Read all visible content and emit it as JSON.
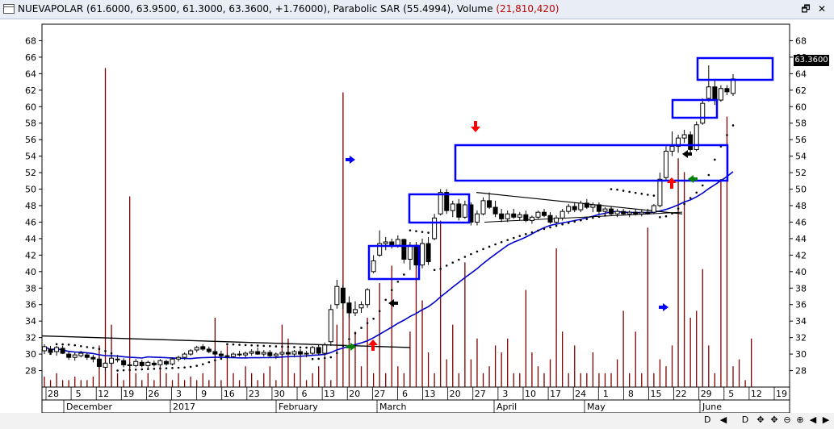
{
  "window": {
    "title_prefix": "NUEVAPOLAR (61.6000, 63.9500, 61.3000, 63.3600, +1.76000), Parabolic SAR (55.4994), Volume ",
    "title_volume": "(21,810,420)",
    "restore_glyph": "🗗",
    "close_glyph": "✕"
  },
  "colors": {
    "candle": "#000000",
    "sma": "#0000cc",
    "trendline": "#000000",
    "sar_dots": "#000000",
    "volume": "#800000",
    "box": "#0000ff",
    "arrow_red": "#ff0000",
    "arrow_blue": "#0000ff",
    "arrow_green": "#008000",
    "arrow_black": "#000000"
  },
  "chart_data": {
    "type": "candlestick",
    "symbol": "NUEVAPOLAR",
    "last": {
      "open": 61.6,
      "high": 63.95,
      "low": 61.3,
      "close": 63.36,
      "change": 1.76
    },
    "price_tag": "63.3600",
    "y_ticks": [
      28,
      30,
      32,
      34,
      36,
      38,
      40,
      42,
      44,
      46,
      48,
      50,
      52,
      54,
      56,
      58,
      60,
      62,
      64,
      66,
      68
    ],
    "ylim": [
      26.0,
      70.0
    ],
    "x_day_labels": [
      "28",
      "5",
      "12",
      "19",
      "26",
      "3",
      "9",
      "16",
      "23",
      "30",
      "6",
      "13",
      "20",
      "27",
      "6",
      "13",
      "20",
      "27",
      "3",
      "10",
      "17",
      "24",
      "1",
      "8",
      "15",
      "22",
      "29",
      "5",
      "12",
      "19"
    ],
    "x_month_labels": [
      "December",
      "2017",
      "February",
      "March",
      "April",
      "May",
      "June"
    ],
    "candles": [
      {
        "o": 30.4,
        "h": 31.2,
        "l": 30.0,
        "c": 30.9
      },
      {
        "o": 30.6,
        "h": 31.0,
        "l": 30.1,
        "c": 30.2
      },
      {
        "o": 30.3,
        "h": 31.0,
        "l": 29.8,
        "c": 30.8
      },
      {
        "o": 30.7,
        "h": 31.0,
        "l": 30.0,
        "c": 30.1
      },
      {
        "o": 30.0,
        "h": 30.3,
        "l": 29.3,
        "c": 29.6
      },
      {
        "o": 29.6,
        "h": 30.2,
        "l": 29.2,
        "c": 29.9
      },
      {
        "o": 29.8,
        "h": 30.4,
        "l": 29.6,
        "c": 30.1
      },
      {
        "o": 29.9,
        "h": 30.2,
        "l": 29.3,
        "c": 29.6
      },
      {
        "o": 29.6,
        "h": 29.9,
        "l": 29.0,
        "c": 29.4
      },
      {
        "o": 29.4,
        "h": 29.7,
        "l": 28.2,
        "c": 28.5
      },
      {
        "o": 28.4,
        "h": 29.2,
        "l": 28.0,
        "c": 28.9
      },
      {
        "o": 28.9,
        "h": 29.8,
        "l": 28.6,
        "c": 29.5
      },
      {
        "o": 29.4,
        "h": 29.9,
        "l": 29.0,
        "c": 29.3
      },
      {
        "o": 29.2,
        "h": 29.5,
        "l": 28.4,
        "c": 28.7
      },
      {
        "o": 28.7,
        "h": 29.0,
        "l": 28.3,
        "c": 28.6
      },
      {
        "o": 28.6,
        "h": 29.4,
        "l": 28.4,
        "c": 29.1
      },
      {
        "o": 29.0,
        "h": 29.3,
        "l": 28.4,
        "c": 28.6
      },
      {
        "o": 28.6,
        "h": 29.2,
        "l": 28.3,
        "c": 29.0
      },
      {
        "o": 28.9,
        "h": 29.2,
        "l": 28.5,
        "c": 28.7
      },
      {
        "o": 28.7,
        "h": 29.4,
        "l": 28.5,
        "c": 29.2
      },
      {
        "o": 29.1,
        "h": 29.3,
        "l": 28.6,
        "c": 28.8
      },
      {
        "o": 28.8,
        "h": 29.6,
        "l": 28.6,
        "c": 29.4
      },
      {
        "o": 29.4,
        "h": 29.8,
        "l": 29.1,
        "c": 29.6
      },
      {
        "o": 29.6,
        "h": 30.2,
        "l": 29.3,
        "c": 30.0
      },
      {
        "o": 30.0,
        "h": 30.6,
        "l": 29.8,
        "c": 30.4
      },
      {
        "o": 30.5,
        "h": 31.0,
        "l": 30.2,
        "c": 30.8
      },
      {
        "o": 30.9,
        "h": 31.2,
        "l": 30.4,
        "c": 30.6
      },
      {
        "o": 30.6,
        "h": 30.9,
        "l": 30.1,
        "c": 30.3
      },
      {
        "o": 30.3,
        "h": 30.6,
        "l": 29.8,
        "c": 30.0
      },
      {
        "o": 30.0,
        "h": 30.4,
        "l": 29.6,
        "c": 29.8
      },
      {
        "o": 29.8,
        "h": 30.1,
        "l": 29.4,
        "c": 29.7
      },
      {
        "o": 29.7,
        "h": 30.2,
        "l": 29.5,
        "c": 30.0
      },
      {
        "o": 30.0,
        "h": 30.4,
        "l": 29.7,
        "c": 29.9
      },
      {
        "o": 29.9,
        "h": 30.3,
        "l": 29.6,
        "c": 30.1
      },
      {
        "o": 30.1,
        "h": 30.6,
        "l": 29.8,
        "c": 30.3
      },
      {
        "o": 30.3,
        "h": 30.8,
        "l": 29.9,
        "c": 30.0
      },
      {
        "o": 30.0,
        "h": 30.5,
        "l": 29.7,
        "c": 30.2
      },
      {
        "o": 30.2,
        "h": 30.5,
        "l": 29.6,
        "c": 29.8
      },
      {
        "o": 29.8,
        "h": 30.2,
        "l": 29.4,
        "c": 30.0
      },
      {
        "o": 30.0,
        "h": 30.4,
        "l": 29.7,
        "c": 30.2
      },
      {
        "o": 30.2,
        "h": 30.6,
        "l": 29.9,
        "c": 30.0
      },
      {
        "o": 30.0,
        "h": 30.5,
        "l": 29.6,
        "c": 30.3
      },
      {
        "o": 30.3,
        "h": 30.6,
        "l": 29.8,
        "c": 30.0
      },
      {
        "o": 30.0,
        "h": 30.4,
        "l": 29.6,
        "c": 30.1
      },
      {
        "o": 30.1,
        "h": 31.0,
        "l": 29.9,
        "c": 30.8
      },
      {
        "o": 30.8,
        "h": 31.2,
        "l": 29.9,
        "c": 30.1
      },
      {
        "o": 30.1,
        "h": 31.4,
        "l": 29.6,
        "c": 31.1
      },
      {
        "o": 31.5,
        "h": 36.0,
        "l": 31.0,
        "c": 35.4
      },
      {
        "o": 36.0,
        "h": 39.0,
        "l": 35.5,
        "c": 38.2
      },
      {
        "o": 38.0,
        "h": 38.4,
        "l": 35.5,
        "c": 36.2
      },
      {
        "o": 36.2,
        "h": 37.0,
        "l": 34.4,
        "c": 35.0
      },
      {
        "o": 35.0,
        "h": 36.4,
        "l": 34.6,
        "c": 35.4
      },
      {
        "o": 35.6,
        "h": 36.4,
        "l": 35.0,
        "c": 36.0
      },
      {
        "o": 36.0,
        "h": 38.0,
        "l": 35.6,
        "c": 37.8
      },
      {
        "o": 40.0,
        "h": 42.0,
        "l": 39.8,
        "c": 41.3
      },
      {
        "o": 42.0,
        "h": 45.0,
        "l": 41.8,
        "c": 43.4
      },
      {
        "o": 43.4,
        "h": 44.2,
        "l": 42.6,
        "c": 43.6
      },
      {
        "o": 43.6,
        "h": 44.0,
        "l": 42.8,
        "c": 43.2
      },
      {
        "o": 43.2,
        "h": 44.4,
        "l": 42.9,
        "c": 43.9
      },
      {
        "o": 43.9,
        "h": 44.0,
        "l": 41.0,
        "c": 41.5
      },
      {
        "o": 41.5,
        "h": 43.6,
        "l": 40.2,
        "c": 43.2
      },
      {
        "o": 43.2,
        "h": 43.6,
        "l": 40.4,
        "c": 40.8
      },
      {
        "o": 40.8,
        "h": 44.0,
        "l": 40.4,
        "c": 43.4
      },
      {
        "o": 43.4,
        "h": 44.2,
        "l": 40.8,
        "c": 41.2
      },
      {
        "o": 44.0,
        "h": 47.0,
        "l": 43.8,
        "c": 46.5
      },
      {
        "o": 47.0,
        "h": 50.0,
        "l": 46.8,
        "c": 49.6
      },
      {
        "o": 49.6,
        "h": 50.0,
        "l": 47.0,
        "c": 47.4
      },
      {
        "o": 47.4,
        "h": 48.6,
        "l": 46.6,
        "c": 48.2
      },
      {
        "o": 48.2,
        "h": 48.8,
        "l": 46.2,
        "c": 46.6
      },
      {
        "o": 46.6,
        "h": 48.6,
        "l": 46.4,
        "c": 48.1
      },
      {
        "o": 48.1,
        "h": 48.4,
        "l": 45.6,
        "c": 46.0
      },
      {
        "o": 46.0,
        "h": 47.4,
        "l": 45.6,
        "c": 47.0
      },
      {
        "o": 47.0,
        "h": 49.0,
        "l": 46.8,
        "c": 48.6
      },
      {
        "o": 48.6,
        "h": 49.6,
        "l": 47.6,
        "c": 47.8
      },
      {
        "o": 47.8,
        "h": 48.6,
        "l": 46.6,
        "c": 47.0
      },
      {
        "o": 47.0,
        "h": 47.6,
        "l": 46.0,
        "c": 46.4
      },
      {
        "o": 46.4,
        "h": 47.4,
        "l": 46.0,
        "c": 47.0
      },
      {
        "o": 47.0,
        "h": 47.6,
        "l": 46.4,
        "c": 46.6
      },
      {
        "o": 46.6,
        "h": 47.2,
        "l": 46.2,
        "c": 46.9
      },
      {
        "o": 46.9,
        "h": 47.4,
        "l": 46.0,
        "c": 46.2
      },
      {
        "o": 46.2,
        "h": 46.8,
        "l": 45.8,
        "c": 46.6
      },
      {
        "o": 46.6,
        "h": 47.4,
        "l": 46.4,
        "c": 47.2
      },
      {
        "o": 47.2,
        "h": 47.6,
        "l": 46.6,
        "c": 46.8
      },
      {
        "o": 46.8,
        "h": 47.2,
        "l": 45.8,
        "c": 46.0
      },
      {
        "o": 46.0,
        "h": 46.8,
        "l": 45.8,
        "c": 46.5
      },
      {
        "o": 46.5,
        "h": 47.6,
        "l": 46.2,
        "c": 47.3
      },
      {
        "o": 47.3,
        "h": 48.2,
        "l": 47.0,
        "c": 47.9
      },
      {
        "o": 47.9,
        "h": 48.4,
        "l": 47.2,
        "c": 47.5
      },
      {
        "o": 47.5,
        "h": 48.6,
        "l": 47.2,
        "c": 48.3
      },
      {
        "o": 48.3,
        "h": 48.8,
        "l": 47.6,
        "c": 47.8
      },
      {
        "o": 47.8,
        "h": 48.4,
        "l": 47.2,
        "c": 48.1
      },
      {
        "o": 48.1,
        "h": 48.4,
        "l": 47.0,
        "c": 47.3
      },
      {
        "o": 47.3,
        "h": 47.8,
        "l": 46.8,
        "c": 47.6
      },
      {
        "o": 47.6,
        "h": 47.9,
        "l": 46.8,
        "c": 47.0
      },
      {
        "o": 47.0,
        "h": 47.6,
        "l": 46.6,
        "c": 47.3
      },
      {
        "o": 47.3,
        "h": 47.6,
        "l": 46.8,
        "c": 47.0
      },
      {
        "o": 47.0,
        "h": 47.4,
        "l": 46.6,
        "c": 47.2
      },
      {
        "o": 47.2,
        "h": 47.6,
        "l": 46.8,
        "c": 47.0
      },
      {
        "o": 47.0,
        "h": 47.5,
        "l": 46.7,
        "c": 47.2
      },
      {
        "o": 47.2,
        "h": 47.6,
        "l": 46.9,
        "c": 47.0
      },
      {
        "o": 47.2,
        "h": 48.2,
        "l": 47.0,
        "c": 48.0
      },
      {
        "o": 48.0,
        "h": 52.0,
        "l": 47.8,
        "c": 51.2
      },
      {
        "o": 51.4,
        "h": 55.2,
        "l": 51.0,
        "c": 54.6
      },
      {
        "o": 54.6,
        "h": 57.0,
        "l": 54.0,
        "c": 55.2
      },
      {
        "o": 55.2,
        "h": 56.6,
        "l": 54.4,
        "c": 56.2
      },
      {
        "o": 56.2,
        "h": 57.2,
        "l": 55.6,
        "c": 56.6
      },
      {
        "o": 56.6,
        "h": 57.0,
        "l": 54.2,
        "c": 54.8
      },
      {
        "o": 54.8,
        "h": 58.2,
        "l": 54.6,
        "c": 57.8
      },
      {
        "o": 58.0,
        "h": 61.0,
        "l": 57.8,
        "c": 60.4
      },
      {
        "o": 61.0,
        "h": 65.0,
        "l": 60.6,
        "c": 62.4
      },
      {
        "o": 62.4,
        "h": 63.2,
        "l": 60.2,
        "c": 60.8
      },
      {
        "o": 60.8,
        "h": 62.6,
        "l": 60.6,
        "c": 62.2
      },
      {
        "o": 62.2,
        "h": 62.6,
        "l": 61.4,
        "c": 61.8
      },
      {
        "o": 61.6,
        "h": 63.95,
        "l": 61.3,
        "c": 63.36
      }
    ],
    "volume_scaled": [
      3,
      2,
      4,
      2,
      2,
      3,
      2,
      2,
      3,
      12,
      92,
      18,
      4,
      2,
      55,
      4,
      2,
      4,
      2,
      6,
      4,
      2,
      4,
      2,
      3,
      2,
      4,
      2,
      20,
      2,
      12,
      4,
      2,
      6,
      4,
      2,
      4,
      6,
      2,
      18,
      14,
      4,
      10,
      2,
      4,
      6,
      8,
      2,
      18,
      85,
      22,
      16,
      6,
      20,
      4,
      30,
      4,
      35,
      6,
      4,
      16,
      40,
      25,
      10,
      4,
      48,
      8,
      18,
      4,
      36,
      8,
      14,
      4,
      6,
      12,
      10,
      14,
      4,
      4,
      28,
      10,
      6,
      4,
      8,
      40,
      16,
      4,
      12,
      4,
      4,
      10,
      4,
      4,
      4,
      8,
      22,
      4,
      16,
      4,
      46,
      4,
      8,
      6,
      12,
      66,
      62,
      20,
      22,
      34,
      12,
      4,
      60,
      78,
      6,
      8,
      2,
      14
    ]
  }
}
